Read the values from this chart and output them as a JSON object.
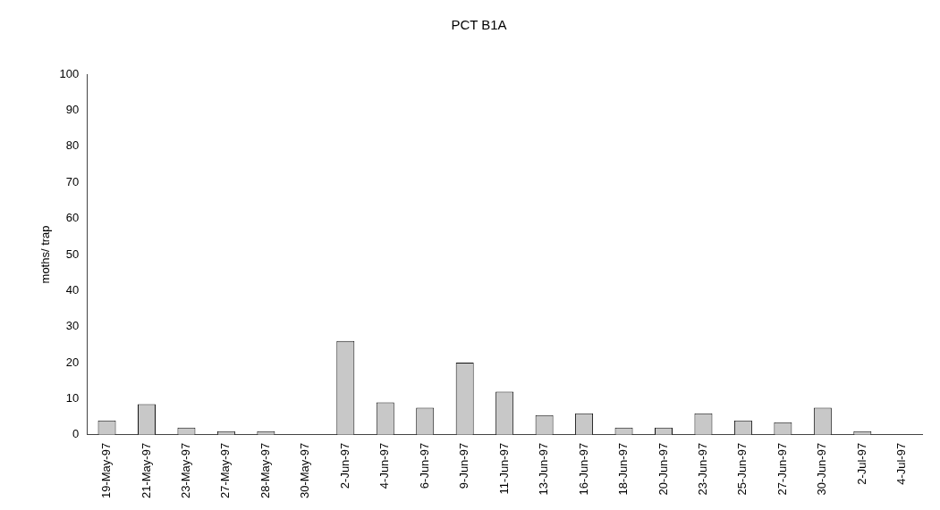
{
  "chart_data": {
    "type": "bar",
    "title": "PCT B1A",
    "ylabel": "moths/ trap",
    "categories": [
      "19-May-97",
      "21-May-97",
      "23-May-97",
      "27-May-97",
      "28-May-97",
      "30-May-97",
      "2-Jun-97",
      "4-Jun-97",
      "6-Jun-97",
      "9-Jun-97",
      "11-Jun-97",
      "13-Jun-97",
      "16-Jun-97",
      "18-Jun-97",
      "20-Jun-97",
      "23-Jun-97",
      "25-Jun-97",
      "27-Jun-97",
      "30-Jun-97",
      "2-Jul-97",
      "4-Jul-97"
    ],
    "values": [
      4,
      8.5,
      2,
      1,
      1,
      0,
      26,
      9,
      7.5,
      20,
      12,
      5.5,
      6,
      2,
      2,
      6,
      4,
      3.5,
      7.5,
      1,
      0
    ],
    "color": "#c8c8c8",
    "ylim": [
      0,
      100
    ],
    "yticks": [
      0,
      10,
      20,
      30,
      40,
      50,
      60,
      70,
      80,
      90,
      100
    ],
    "grid": false,
    "legend": false
  }
}
